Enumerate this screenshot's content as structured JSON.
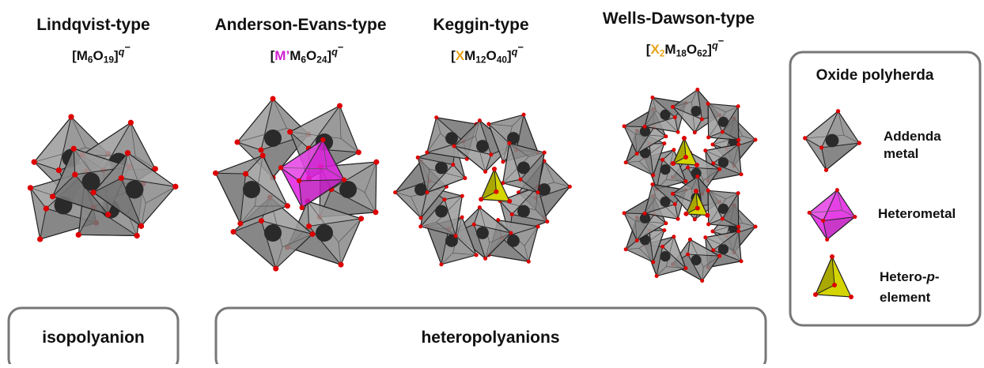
{
  "structures": [
    {
      "name": "Lindqvist-type",
      "formula": [
        {
          "text": "[M"
        },
        {
          "text": "6",
          "sub": true
        },
        {
          "text": "O"
        },
        {
          "text": "19",
          "sub": true
        },
        {
          "text": "]"
        },
        {
          "text": "q",
          "sup": true,
          "italic": true
        },
        {
          "text": "−",
          "sup": true
        }
      ]
    },
    {
      "name": "Anderson-Evans-type",
      "formula": [
        {
          "text": "["
        },
        {
          "text": "M’",
          "color": "#d21fd2"
        },
        {
          "text": "M"
        },
        {
          "text": "6",
          "sub": true
        },
        {
          "text": "O"
        },
        {
          "text": "24",
          "sub": true
        },
        {
          "text": "]"
        },
        {
          "text": "q",
          "sup": true,
          "italic": true
        },
        {
          "text": "−",
          "sup": true
        }
      ]
    },
    {
      "name": "Keggin-type",
      "formula": [
        {
          "text": "["
        },
        {
          "text": "X",
          "color": "#e8a317"
        },
        {
          "text": "M"
        },
        {
          "text": "12",
          "sub": true
        },
        {
          "text": "O"
        },
        {
          "text": "40",
          "sub": true
        },
        {
          "text": "]"
        },
        {
          "text": "q",
          "sup": true,
          "italic": true
        },
        {
          "text": "−",
          "sup": true
        }
      ]
    },
    {
      "name": "Wells-Dawson-type",
      "formula": [
        {
          "text": "["
        },
        {
          "text": "X",
          "color": "#e8a317"
        },
        {
          "text": "2",
          "sub": true,
          "color": "#e8a317"
        },
        {
          "text": "M"
        },
        {
          "text": "18",
          "sub": true
        },
        {
          "text": "O"
        },
        {
          "text": "62",
          "sub": true
        },
        {
          "text": "]"
        },
        {
          "text": "q",
          "sup": true,
          "italic": true
        },
        {
          "text": "−",
          "sup": true
        }
      ]
    }
  ],
  "legend": {
    "title": "Oxide polyherda",
    "items": [
      {
        "lines": [
          [
            {
              "text": "Addenda"
            }
          ],
          [
            {
              "text": "metal"
            }
          ]
        ]
      },
      {
        "lines": [
          [
            {
              "text": "Heterometal"
            }
          ]
        ]
      },
      {
        "lines": [
          [
            {
              "text": "Hetero-"
            },
            {
              "text": "p",
              "italic": true
            },
            {
              "text": "-"
            }
          ],
          [
            {
              "text": "element"
            }
          ]
        ]
      }
    ]
  },
  "groups": [
    "isopolyanion",
    "heteropolyanions"
  ]
}
